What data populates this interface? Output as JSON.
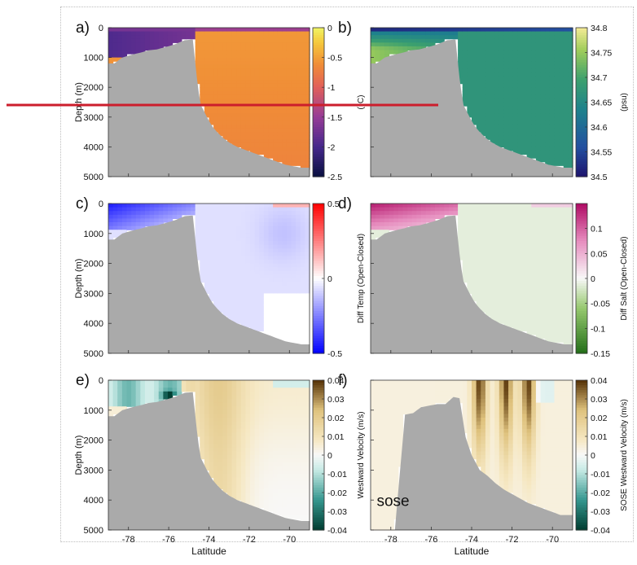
{
  "figure": {
    "xlabel": "Latitude",
    "overlay_line_color": "#cc1e2c",
    "panels": [
      {
        "id": "a",
        "letter": "a)",
        "field": "temperature",
        "ylabel": "Depth (m)",
        "cbar_label": "(°C)",
        "cbar_ticks": [
          "0",
          "-0.5",
          "-1",
          "-1.5",
          "-2",
          "-2.5"
        ],
        "cbar_range": [
          -2.5,
          0
        ],
        "colormap": "thermal",
        "show_yticks": true,
        "show_xticks": false
      },
      {
        "id": "b",
        "letter": "b)",
        "field": "salinity",
        "ylabel": "",
        "cbar_label": "(psu)",
        "cbar_ticks": [
          "34.8",
          "34.75",
          "34.7",
          "34.65",
          "34.6",
          "34.55",
          "34.5"
        ],
        "cbar_range": [
          34.5,
          34.8
        ],
        "colormap": "haline",
        "show_yticks": false,
        "show_xticks": false
      },
      {
        "id": "c",
        "letter": "c)",
        "field": "temp_diff",
        "ylabel": "Depth (m)",
        "cbar_label": "Diff Temp (Open-Closed)",
        "cbar_ticks": [
          "0.5",
          "0",
          "-0.5"
        ],
        "cbar_range": [
          -0.5,
          0.5
        ],
        "colormap": "bwr",
        "show_yticks": true,
        "show_xticks": false
      },
      {
        "id": "d",
        "letter": "d)",
        "field": "salt_diff",
        "ylabel": "",
        "cbar_label": "Diff Salt (Open-Closed)",
        "cbar_ticks": [
          "0.1",
          "0.05",
          "0",
          "-0.05",
          "-0.1",
          "-0.15"
        ],
        "cbar_range": [
          -0.15,
          0.15
        ],
        "colormap": "piyg",
        "show_yticks": false,
        "show_xticks": false
      },
      {
        "id": "e",
        "letter": "e)",
        "field": "velocity",
        "ylabel": "Depth (m)",
        "cbar_label": "Westward Velocity (m/s)",
        "cbar_ticks": [
          "0.04",
          "0.03",
          "0.02",
          "0.01",
          "0",
          "-0.01",
          "-0.02",
          "-0.03",
          "-0.04"
        ],
        "cbar_range": [
          -0.04,
          0.04
        ],
        "colormap": "brbg",
        "show_yticks": true,
        "show_xticks": true
      },
      {
        "id": "f",
        "letter": "f)",
        "field": "sose_velocity",
        "ylabel": "",
        "cbar_label": "SOSE Westward Velocity (m/s)",
        "cbar_ticks": [
          "0.04",
          "0.03",
          "0.02",
          "0.01",
          "0",
          "-0.01",
          "-0.02",
          "-0.03",
          "-0.04"
        ],
        "cbar_range": [
          -0.04,
          0.04
        ],
        "colormap": "brbg",
        "show_yticks": false,
        "show_xticks": true,
        "annotation": "sose"
      }
    ]
  },
  "chart_data": {
    "type": "heatmap",
    "title": "",
    "xlabel": "Latitude",
    "ylabel": "Depth (m)",
    "xlim": [
      -79,
      -69
    ],
    "ylim": [
      0,
      5000
    ],
    "x_ticks": [
      -78,
      -76,
      -74,
      -72,
      -70
    ],
    "y_ticks": [
      0,
      1000,
      2000,
      3000,
      4000,
      5000
    ],
    "y_inverted": true,
    "bathymetry_model": {
      "lat": [
        -79,
        -78.7,
        -78.3,
        -77.8,
        -77.3,
        -77.0,
        -76.6,
        -76.1,
        -75.7,
        -75.2,
        -74.8,
        -74.55,
        -74.4,
        -74.1,
        -73.85,
        -73.6,
        -73.3,
        -73.0,
        -72.6,
        -72.2,
        -71.8,
        -71.4,
        -71.0,
        -70.6,
        -70.2,
        -69.8,
        -69.4,
        -69.0
      ],
      "depth": [
        1200,
        1200,
        1000,
        900,
        820,
        760,
        730,
        640,
        560,
        420,
        400,
        2000,
        2600,
        3000,
        3300,
        3500,
        3700,
        3850,
        4000,
        4100,
        4200,
        4300,
        4400,
        4500,
        4600,
        4650,
        4700,
        4700
      ]
    },
    "bathymetry_sose": {
      "lat": [
        -79,
        -77.8,
        -77.3,
        -76.9,
        -76.5,
        -76.1,
        -75.7,
        -75.3,
        -74.9,
        -74.6,
        -74.3,
        -74.0,
        -73.6,
        -73.2,
        -72.8,
        -72.4,
        -72.0,
        -71.6,
        -71.2,
        -70.8,
        -70.4,
        -70.0,
        -69.6,
        -69.0
      ],
      "depth": [
        5000,
        5000,
        1150,
        1100,
        900,
        850,
        800,
        800,
        560,
        600,
        1900,
        2500,
        3000,
        3200,
        3450,
        3650,
        3800,
        3950,
        4100,
        4200,
        4300,
        4400,
        4500,
        4500
      ]
    },
    "series": [
      {
        "name": "a",
        "shallow_shelf_value": -1.9,
        "deep_value": -0.6,
        "range": [
          -2.5,
          0
        ]
      },
      {
        "name": "b",
        "surface_value": 34.6,
        "shelf_value": 34.76,
        "deep_value": 34.67,
        "range": [
          34.5,
          34.8
        ]
      },
      {
        "name": "c",
        "shelf_value": -0.45,
        "deep_value": -0.05,
        "range": [
          -0.5,
          0.5
        ]
      },
      {
        "name": "d",
        "shelf_value": 0.13,
        "deep_value": -0.01,
        "range": [
          -0.15,
          0.15
        ]
      },
      {
        "name": "e",
        "shelf_value": -0.01,
        "slope_value": 0.008,
        "range": [
          -0.04,
          0.04
        ]
      },
      {
        "name": "f",
        "jet_value": 0.035,
        "deep_value": 0.005,
        "range": [
          -0.04,
          0.04
        ]
      }
    ]
  }
}
